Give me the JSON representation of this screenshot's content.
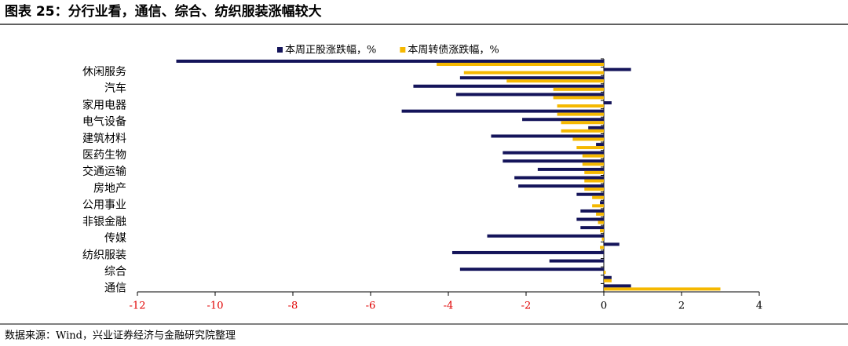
{
  "chart_data": {
    "type": "hbar",
    "title": "图表 25：分行业看，通信、综合、纺织服装涨幅较大",
    "source": "数据来源：Wind，兴业证券经济与金融研究院整理",
    "categories": [
      null,
      "休闲服务",
      null,
      "汽车",
      null,
      "家用电器",
      null,
      "电气设备",
      null,
      "建筑材料",
      null,
      "医药生物",
      null,
      "交通运输",
      null,
      "房地产",
      null,
      "公用事业",
      null,
      "非银金融",
      null,
      "传媒",
      null,
      "纺织服装",
      null,
      "综合",
      null,
      "通信"
    ],
    "series": [
      {
        "name": "本周正股涨跌幅，%",
        "color": "#14145a",
        "values": [
          -11,
          0.7,
          -3.7,
          -4.9,
          -3.8,
          0.2,
          -5.2,
          -2.1,
          -0.4,
          -2.9,
          -0.2,
          -2.6,
          -2.6,
          -1.7,
          -2.3,
          -2.2,
          -0.7,
          -0.1,
          -0.6,
          -0.7,
          -0.6,
          -3.0,
          0.4,
          -3.9,
          -1.4,
          -3.7,
          0.2,
          0.7
        ]
      },
      {
        "name": "本周转债涨跌幅，%",
        "color": "#f5b800",
        "values": [
          -4.3,
          -3.6,
          -2.5,
          -1.3,
          -1.3,
          -1.2,
          -1.2,
          -1.1,
          -1.1,
          -0.8,
          -0.7,
          -0.55,
          -0.55,
          -0.5,
          -0.5,
          -0.5,
          -0.3,
          -0.3,
          -0.2,
          -0.15,
          -0.1,
          -0.05,
          -0.1,
          0,
          0,
          0.05,
          0.2,
          3.0
        ]
      }
    ],
    "xlim": [
      -12,
      4
    ],
    "xticks": [
      -12,
      -10,
      -8,
      -6,
      -4,
      -2,
      0,
      2,
      4
    ],
    "negative_tick_color": "#e00000",
    "legend": "top"
  }
}
